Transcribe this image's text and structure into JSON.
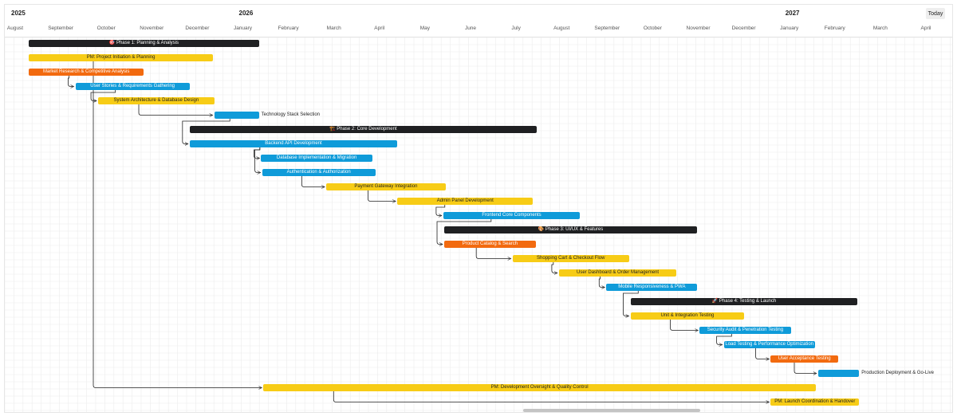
{
  "header": {
    "years": [
      {
        "label": "2025",
        "month_index": 0
      },
      {
        "label": "2026",
        "month_index": 5
      },
      {
        "label": "2027",
        "month_index": 17
      }
    ],
    "months": [
      "August",
      "September",
      "October",
      "November",
      "December",
      "January",
      "February",
      "March",
      "April",
      "May",
      "June",
      "July",
      "August",
      "September",
      "October",
      "November",
      "December",
      "January",
      "February",
      "March",
      "April"
    ],
    "today_label": "Today"
  },
  "colors": {
    "phase": "#1f2022",
    "yellow": "#f7cc16",
    "orange": "#f26a0f",
    "blue": "#0f9bd9",
    "grid": "#ececec",
    "link": "#222222"
  },
  "tasks": [
    {
      "label": "🎯 Phase 1: Planning & Analysis",
      "color": "phase",
      "start": 0.53,
      "end": 5.58
    },
    {
      "label": "PM: Project Initiation & Planning",
      "color": "yellow",
      "start": 0.53,
      "end": 4.57
    },
    {
      "label": "Market Research & Competitive Analysis",
      "color": "orange",
      "start": 0.53,
      "end": 3.05
    },
    {
      "label": "User Stories & Requirements Gathering",
      "color": "blue",
      "start": 1.55,
      "end": 4.06
    },
    {
      "label": "System Architecture & Database Design",
      "color": "yellow",
      "start": 2.05,
      "end": 4.6
    },
    {
      "label": "Technology Stack Selection",
      "color": "blue",
      "start": 4.6,
      "end": 5.58,
      "outside": true
    },
    {
      "label": "🏗️ Phase 2: Core Development",
      "color": "phase",
      "start": 4.06,
      "end": 11.68
    },
    {
      "label": "Backend API Development",
      "color": "blue",
      "start": 4.06,
      "end": 8.62
    },
    {
      "label": "Database Implementation & Migration",
      "color": "blue",
      "start": 5.63,
      "end": 8.07
    },
    {
      "label": "Authentication & Authorization",
      "color": "blue",
      "start": 5.65,
      "end": 8.14
    },
    {
      "label": "Payment Gateway Integration",
      "color": "yellow",
      "start": 7.06,
      "end": 9.68
    },
    {
      "label": "Admin Panel Development",
      "color": "yellow",
      "start": 8.62,
      "end": 11.6
    },
    {
      "label": "Frontend Core Components",
      "color": "blue",
      "start": 9.63,
      "end": 12.63
    },
    {
      "label": "🎨 Phase 3: UI/UX & Features",
      "color": "phase",
      "start": 9.65,
      "end": 15.2
    },
    {
      "label": "Product Catalog & Search",
      "color": "orange",
      "start": 9.65,
      "end": 11.66
    },
    {
      "label": "Shopping Cart & Checkout Flow",
      "color": "yellow",
      "start": 11.15,
      "end": 13.71
    },
    {
      "label": "User Dashboard & Order Management",
      "color": "yellow",
      "start": 12.17,
      "end": 14.75
    },
    {
      "label": "Mobile Responsiveness & PWA",
      "color": "blue",
      "start": 13.21,
      "end": 15.21
    },
    {
      "label": "🚀 Phase 4: Testing & Launch",
      "color": "phase",
      "start": 13.74,
      "end": 18.73
    },
    {
      "label": "Unit & Integration Testing",
      "color": "yellow",
      "start": 13.74,
      "end": 16.24
    },
    {
      "label": "Security Audit & Penetration Testing",
      "color": "blue",
      "start": 15.26,
      "end": 17.26
    },
    {
      "label": "Load Testing & Performance Optimization",
      "color": "blue",
      "start": 15.79,
      "end": 17.79
    },
    {
      "label": "User Acceptance Testing",
      "color": "orange",
      "start": 16.82,
      "end": 18.3
    },
    {
      "label": "Production Deployment & Go-Live",
      "color": "blue",
      "start": 17.86,
      "end": 18.76,
      "outside": true
    },
    {
      "label": "PM: Development Oversight & Quality Control",
      "color": "yellow",
      "start": 5.68,
      "end": 17.81
    },
    {
      "label": "PM: Launch Coordination & Handover",
      "color": "yellow",
      "start": 16.82,
      "end": 18.76
    }
  ],
  "dependencies": [
    [
      2,
      3
    ],
    [
      3,
      4
    ],
    [
      4,
      5
    ],
    [
      5,
      7
    ],
    [
      7,
      8
    ],
    [
      7,
      9
    ],
    [
      9,
      10
    ],
    [
      10,
      11
    ],
    [
      11,
      12
    ],
    [
      12,
      14
    ],
    [
      14,
      15
    ],
    [
      15,
      16
    ],
    [
      16,
      17
    ],
    [
      17,
      19
    ],
    [
      19,
      20
    ],
    [
      20,
      21
    ],
    [
      21,
      22
    ],
    [
      22,
      23
    ],
    [
      1,
      24
    ],
    [
      24,
      25
    ]
  ]
}
